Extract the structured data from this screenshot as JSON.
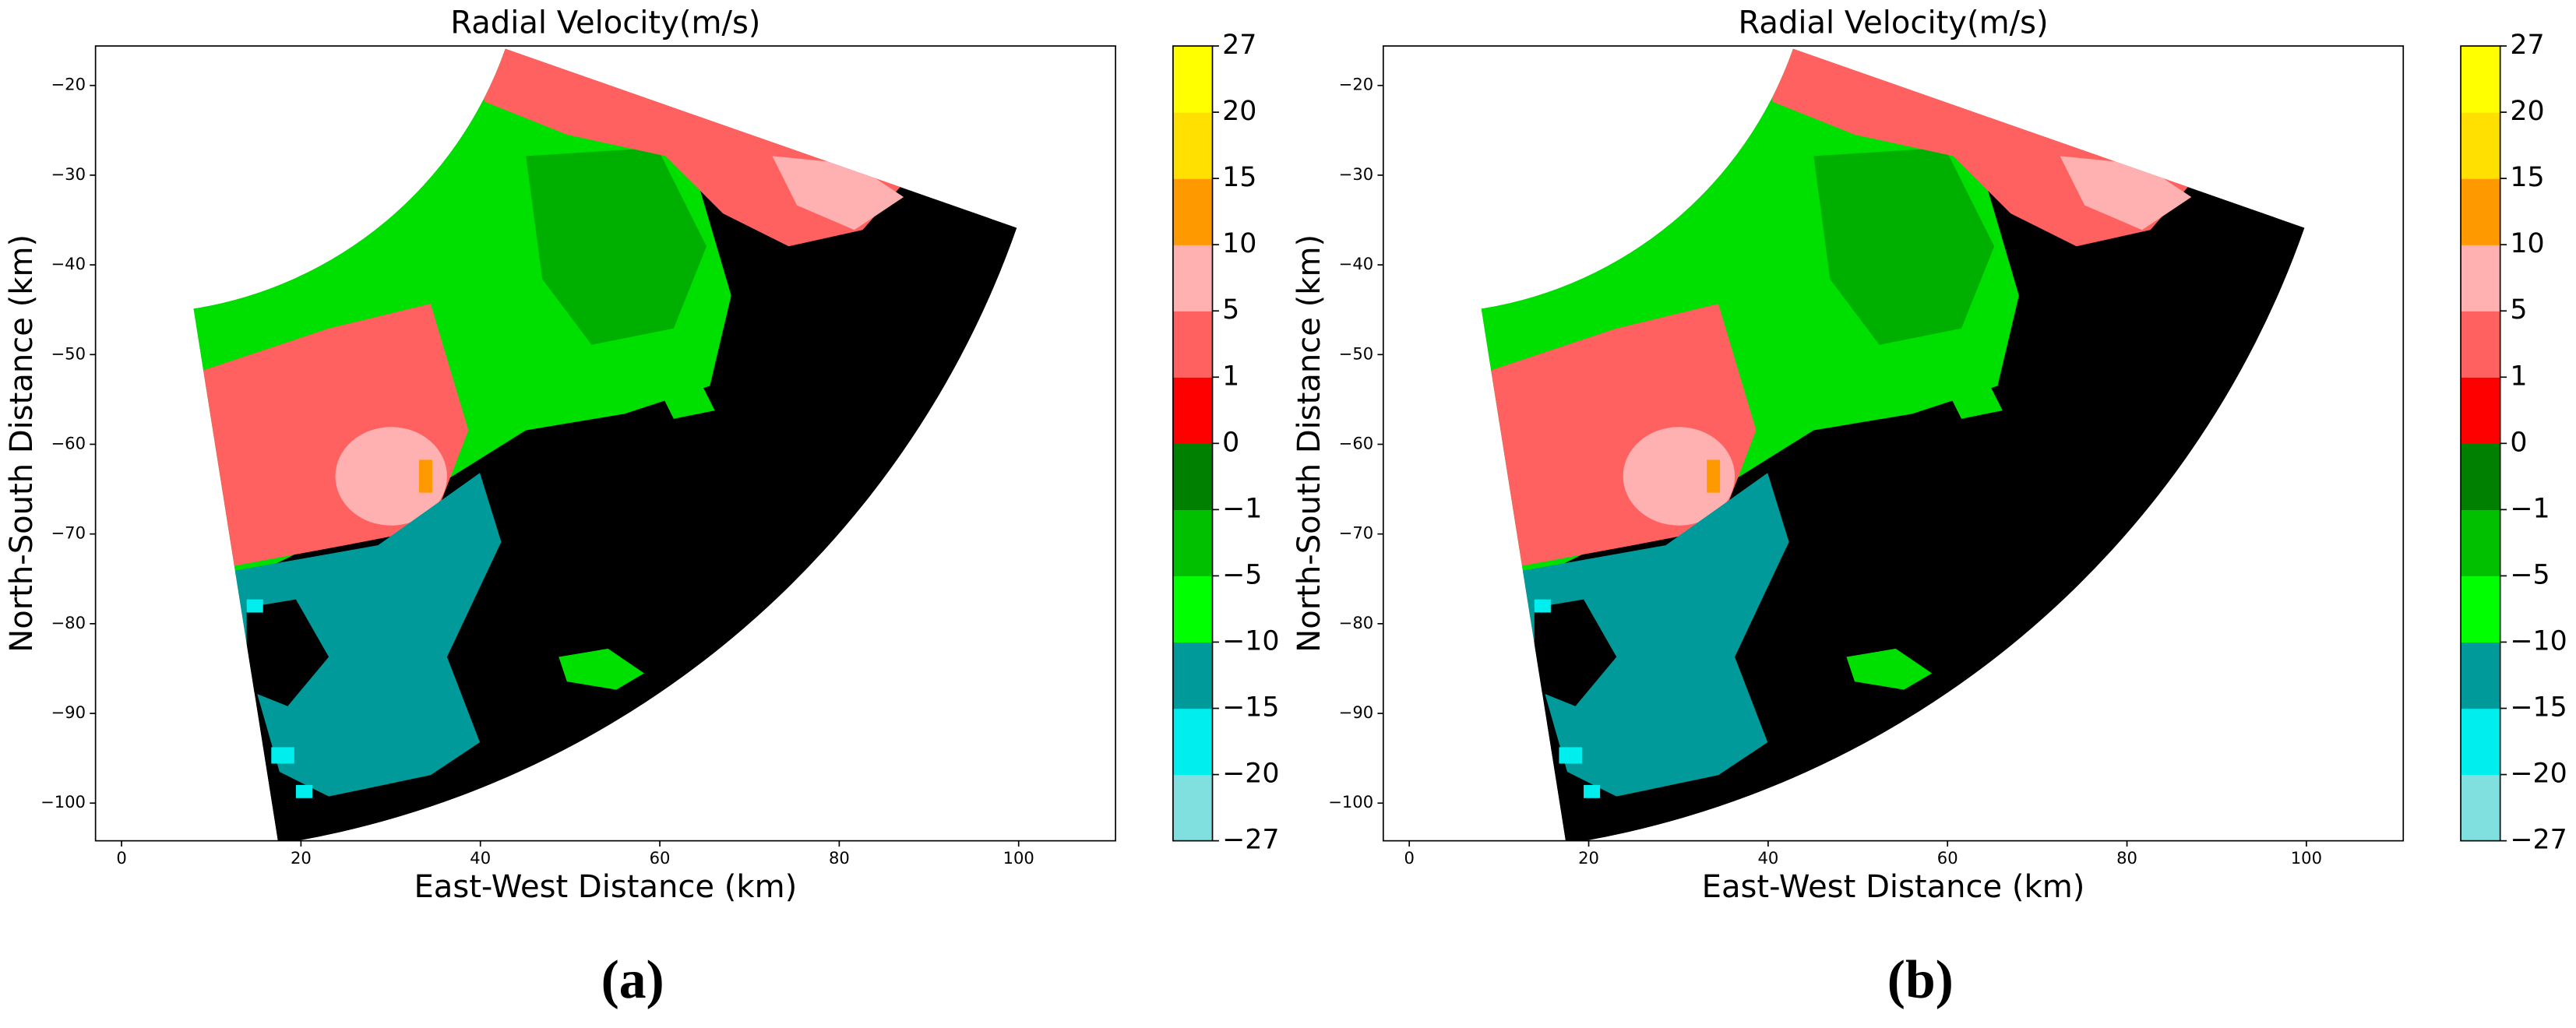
{
  "chart_data": [
    {
      "type": "radar",
      "title": "Radial Velocity(m/s)",
      "xlabel": "East-West Distance (km)",
      "ylabel": "North-South Distance (km)",
      "caption": "(a)",
      "xlim": [
        -2.9,
        110.8
      ],
      "ylim": [
        -104.2,
        -15.6
      ],
      "xticks": [
        0,
        20,
        40,
        60,
        80,
        100
      ],
      "yticks": [
        {
          "value": -20,
          "label": "−20"
        },
        {
          "value": -30,
          "label": "−30"
        },
        {
          "value": -40,
          "label": "−40"
        },
        {
          "value": -50,
          "label": "−50"
        },
        {
          "value": -60,
          "label": "−60"
        },
        {
          "value": -70,
          "label": "−70"
        },
        {
          "value": -80,
          "label": "−80"
        },
        {
          "value": -90,
          "label": "−90"
        },
        {
          "value": -100,
          "label": "−100"
        }
      ],
      "colorbar": {
        "levels": [
          {
            "value": -27,
            "label": "−27"
          },
          {
            "value": -20,
            "label": "−20"
          },
          {
            "value": -15,
            "label": "−15"
          },
          {
            "value": -10,
            "label": "−10"
          },
          {
            "value": -5,
            "label": "−5"
          },
          {
            "value": -1,
            "label": "−1"
          },
          0,
          1,
          5,
          10,
          15,
          20,
          27
        ],
        "colors": [
          "#80e0e0",
          "#00eeee",
          "#009a9a",
          "#00ff00",
          "#00c000",
          "#008000",
          "#ff0000",
          "#ff6060",
          "#ffb0b0",
          "#ff9900",
          "#ffe000",
          "#ffff00"
        ]
      }
    },
    {
      "type": "radar",
      "title": "Radial Velocity(m/s)",
      "xlabel": "East-West Distance (km)",
      "ylabel": "North-South Distance (km)",
      "caption": "(b)",
      "xlim": [
        -2.9,
        110.8
      ],
      "ylim": [
        -104.2,
        -15.6
      ],
      "xticks": [
        0,
        20,
        40,
        60,
        80,
        100
      ],
      "yticks": [
        {
          "value": -20,
          "label": "−20"
        },
        {
          "value": -30,
          "label": "−30"
        },
        {
          "value": -40,
          "label": "−40"
        },
        {
          "value": -50,
          "label": "−50"
        },
        {
          "value": -60,
          "label": "−60"
        },
        {
          "value": -70,
          "label": "−70"
        },
        {
          "value": -80,
          "label": "−80"
        },
        {
          "value": -90,
          "label": "−90"
        },
        {
          "value": -100,
          "label": "−100"
        }
      ],
      "colorbar": {
        "levels": [
          {
            "value": -27,
            "label": "−27"
          },
          {
            "value": -20,
            "label": "−20"
          },
          {
            "value": -15,
            "label": "−15"
          },
          {
            "value": -10,
            "label": "−10"
          },
          {
            "value": -5,
            "label": "−5"
          },
          {
            "value": -1,
            "label": "−1"
          },
          0,
          1,
          5,
          10,
          15,
          20,
          27
        ],
        "colors": [
          "#80e0e0",
          "#00eeee",
          "#009a9a",
          "#00ff00",
          "#00c000",
          "#008000",
          "#ff0000",
          "#ff6060",
          "#ffb0b0",
          "#ff9900",
          "#ffe000",
          "#ffff00"
        ]
      }
    }
  ]
}
